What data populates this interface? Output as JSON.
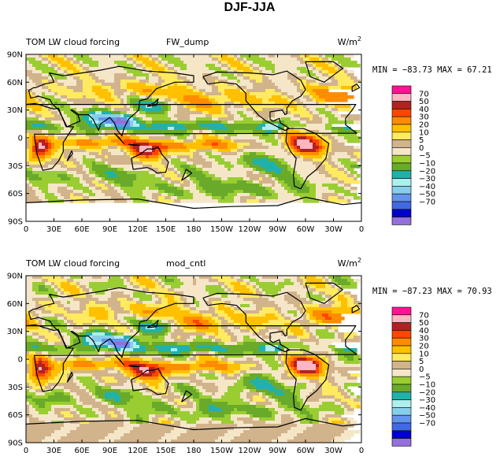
{
  "main_title": "DJF-JJA",
  "units_base": "W/m",
  "units_exp": "2",
  "panels": [
    {
      "title": "TOM LW cloud forcing",
      "case": "FW_dump",
      "stats": "MIN = −83.73 MAX =   67.21"
    },
    {
      "title": "TOM LW cloud forcing",
      "case": "mod_cntl",
      "stats": "MIN = −87.23 MAX =   70.93"
    }
  ],
  "x_ticks": [
    "0",
    "30E",
    "60E",
    "90E",
    "120E",
    "150E",
    "180",
    "150W",
    "120W",
    "90W",
    "60W",
    "30W",
    "0"
  ],
  "y_ticks": [
    "90N",
    "60N",
    "30N",
    "0",
    "30S",
    "60S",
    "90S"
  ],
  "legend": {
    "colors": [
      "#ff1493",
      "#ffb6c1",
      "#b22222",
      "#ff4500",
      "#ff8c00",
      "#ffc000",
      "#ffea60",
      "#d2b48c",
      "#f5e6c8",
      "#9acd32",
      "#6aaa2a",
      "#20b2aa",
      "#afeeee",
      "#87ceeb",
      "#6495ed",
      "#4169e1",
      "#0000cd",
      "#9370db"
    ],
    "labels": [
      "70",
      "50",
      "40",
      "30",
      "20",
      "10",
      "5",
      "0",
      "−5",
      "−10",
      "−20",
      "−30",
      "−40",
      "−50",
      "−70"
    ]
  },
  "chart_data": [
    {
      "type": "heatmap",
      "title": "TOM LW cloud forcing  FW_dump",
      "units": "W/m2",
      "min": -83.73,
      "max": 67.21,
      "xlabel_ticks": [
        "0",
        "30E",
        "60E",
        "90E",
        "120E",
        "150E",
        "180",
        "150W",
        "120W",
        "90W",
        "60W",
        "30W",
        "0"
      ],
      "ylabel_ticks": [
        "90N",
        "60N",
        "30N",
        "0",
        "30S",
        "60S",
        "90S"
      ],
      "levels": [
        -70,
        -50,
        -40,
        -30,
        -20,
        -10,
        -5,
        0,
        5,
        10,
        20,
        30,
        40,
        50,
        70
      ]
    },
    {
      "type": "heatmap",
      "title": "TOM LW cloud forcing  mod_cntl",
      "units": "W/m2",
      "min": -87.23,
      "max": 70.93,
      "xlabel_ticks": [
        "0",
        "30E",
        "60E",
        "90E",
        "120E",
        "150E",
        "180",
        "150W",
        "120W",
        "90W",
        "60W",
        "30W",
        "0"
      ],
      "ylabel_ticks": [
        "90N",
        "60N",
        "30N",
        "0",
        "30S",
        "60S",
        "90S"
      ],
      "levels": [
        -70,
        -50,
        -40,
        -30,
        -20,
        -10,
        -5,
        0,
        5,
        10,
        20,
        30,
        40,
        50,
        70
      ]
    }
  ]
}
